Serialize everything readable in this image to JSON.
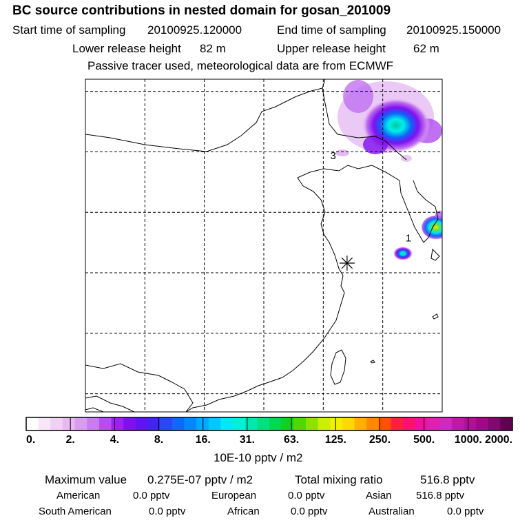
{
  "title": "BC  source contributions in nested domain for gosan_201009",
  "header": {
    "start_label": "Start time of sampling",
    "start_value": "20100925.120000",
    "end_label": "End time of sampling",
    "end_value": "20100925.150000",
    "lower_label": "Lower release height",
    "lower_value": "82 m",
    "upper_label": "Upper release height",
    "upper_value": "62 m",
    "note": "Passive tracer used, meteorological data are from ECMWF"
  },
  "map": {
    "labels": [
      {
        "text": "3",
        "lon": 125.5,
        "lat": 41.9
      },
      {
        "text": "1",
        "lon": 129.3,
        "lat": 35.1
      }
    ],
    "receptor": {
      "lon": 126.2,
      "lat": 33.3
    },
    "lon_range": [
      113.0,
      131.0
    ],
    "lat_range": [
      21.0,
      48.5
    ],
    "grid_lons": [
      116,
      119,
      122,
      125,
      128
    ],
    "grid_lats": [
      22.5,
      27.5,
      32.5,
      37.5,
      42.5,
      47.5
    ],
    "plumes": [
      {
        "name": "northeast-plume",
        "lon": 126.5,
        "lat": 42.5,
        "level": "cyan"
      },
      {
        "name": "korea-plume",
        "lon": 129.5,
        "lat": 35.4,
        "level": "yellow"
      },
      {
        "name": "jeju-plume",
        "lon": 126.5,
        "lat": 33.4,
        "level": "cyan"
      }
    ]
  },
  "colorbar": {
    "tick_labels": [
      "0.",
      "2.",
      "4.",
      "8.",
      "16.",
      "31.",
      "63.",
      "125.",
      "250.",
      "500.",
      "1000.",
      "2000."
    ],
    "colors": [
      "#ffffff",
      "#f8e6f8",
      "#f0d0f4",
      "#e8b8f0",
      "#d89cf0",
      "#c87cf0",
      "#b84cf0",
      "#a020f0",
      "#8010f0",
      "#6014f0",
      "#4024f0",
      "#2848f4",
      "#1068f8",
      "#0088fc",
      "#00a8ff",
      "#00c8ff",
      "#00e8f8",
      "#00f0d8",
      "#00e8b0",
      "#00e080",
      "#00d850",
      "#10d020",
      "#50d800",
      "#90e000",
      "#c8f000",
      "#f0f000",
      "#ffd800",
      "#ffb000",
      "#ff8800",
      "#ff5000",
      "#ff2040",
      "#ff1070",
      "#f010a0",
      "#e020b0",
      "#d028c0",
      "#c018a8",
      "#b01098",
      "#a00888",
      "#800870",
      "#600050"
    ],
    "unit_label": "10E-10 pptv / m2"
  },
  "footer": {
    "max_label": "Maximum value",
    "max_value": "0.275E-07 pptv / m2",
    "total_label": "Total mixing ratio",
    "total_value": "516.8 pptv",
    "rows": [
      {
        "label": "American",
        "value": "0.0 pptv"
      },
      {
        "label": "European",
        "value": "0.0 pptv"
      },
      {
        "label": "Asian",
        "value": "516.8 pptv"
      },
      {
        "label": "South American",
        "value": "0.0 pptv"
      },
      {
        "label": "African",
        "value": "0.0 pptv"
      },
      {
        "label": "Australian",
        "value": "0.0 pptv"
      }
    ]
  }
}
